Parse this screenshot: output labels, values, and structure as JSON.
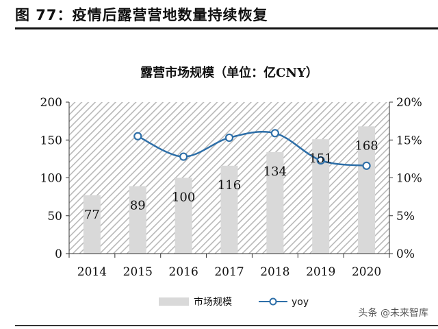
{
  "figure": {
    "heading": "图 77：疫情后露营营地数量持续恢复",
    "watermark": "头条 @未来智库"
  },
  "chart_data": {
    "type": "bar",
    "title": "露营市场规模（单位：亿CNY）",
    "categories": [
      "2014",
      "2015",
      "2016",
      "2017",
      "2018",
      "2019",
      "2020"
    ],
    "series": [
      {
        "name": "市场规模",
        "type": "bar",
        "axis": "left",
        "values": [
          77,
          89,
          100,
          116,
          134,
          151,
          168
        ],
        "labels": [
          "77",
          "89",
          "100",
          "116",
          "134",
          "151",
          "168"
        ],
        "color": "#d9d9d9"
      },
      {
        "name": "yoy",
        "type": "line",
        "axis": "right",
        "values": [
          null,
          15.5,
          12.8,
          15.3,
          15.9,
          12.3,
          11.6
        ],
        "color": "#2e6fa8"
      }
    ],
    "left_axis": {
      "ylim": [
        0,
        200
      ],
      "ticks": [
        "0",
        "50",
        "100",
        "150",
        "200"
      ]
    },
    "right_axis": {
      "ylim": [
        0,
        20
      ],
      "ticks": [
        "0%",
        "5%",
        "10%",
        "15%",
        "20%"
      ]
    },
    "plot_background": "diagonal-hatch",
    "legend_position": "bottom"
  }
}
